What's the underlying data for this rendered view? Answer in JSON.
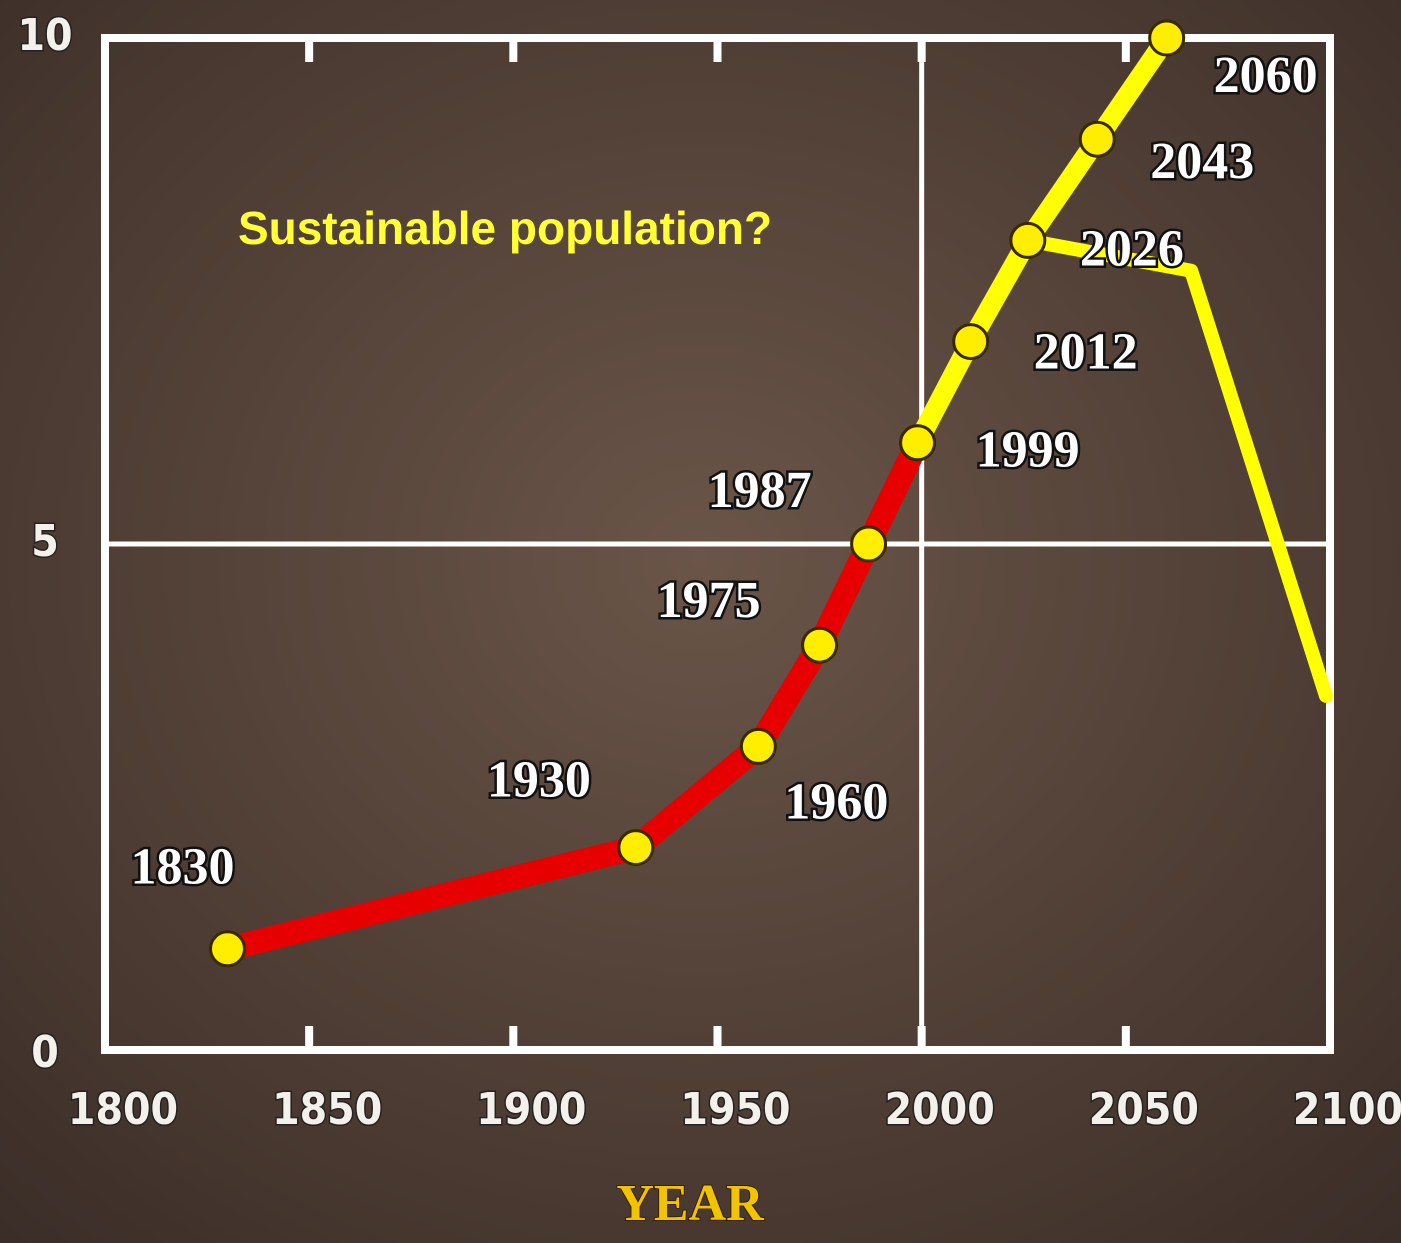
{
  "chart_data": {
    "type": "line",
    "xlabel": "YEAR",
    "annotation": "Sustainable population?",
    "series": [
      {
        "color": "#e60000",
        "x": [
          1830,
          1930,
          1960,
          1975,
          1987,
          1999
        ],
        "values": [
          1,
          2,
          3,
          4,
          5,
          6
        ]
      },
      {
        "color": "#ffff00",
        "x": [
          1999,
          2012,
          2026,
          2043,
          2060
        ],
        "values": [
          6,
          7,
          8,
          9,
          10
        ]
      },
      {
        "color": "#ffff00",
        "x": [
          2026,
          2066,
          2099
        ],
        "values": [
          8,
          7.7,
          3.5
        ],
        "markers": false
      }
    ],
    "xlim": [
      1800,
      2100
    ],
    "xticks": [
      1800,
      1850,
      1900,
      1950,
      2000,
      2050,
      2100
    ],
    "ylim": [
      0,
      10
    ],
    "yticks": [
      0,
      5,
      10
    ],
    "xgrid": [
      2000
    ],
    "ygrid": [
      5
    ]
  }
}
